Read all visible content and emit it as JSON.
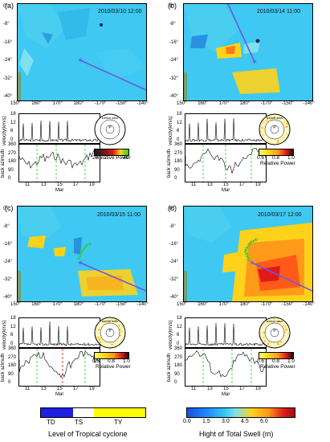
{
  "panels": [
    {
      "label": "(a)",
      "date": "2010/03/10 12:00",
      "ts_xticks": [
        "11",
        "13",
        "15",
        "17",
        "19"
      ],
      "polar_scale": [],
      "polar_values": [
        "20",
        "40"
      ]
    },
    {
      "label": "(b)",
      "date": "2010/03/14 11:00",
      "ts_xticks": [
        "11",
        "13",
        "15",
        "17",
        "19"
      ],
      "polar_scale": [
        "0.6",
        "0.8",
        "1.0"
      ],
      "polar_values": []
    },
    {
      "label": "(c)",
      "date": "2010/03/15 11:00",
      "ts_xticks": [
        "11",
        "13",
        "15",
        "17",
        "19"
      ],
      "polar_scale": [
        "0.6",
        "0.8",
        "1.0"
      ],
      "polar_values": []
    },
    {
      "label": "(d)",
      "date": "2010/03/17 12:00",
      "ts_xticks": [
        "11",
        "13",
        "15",
        "17",
        "19"
      ],
      "polar_scale": [
        "0.6",
        "0.8",
        "1.0"
      ],
      "polar_values": []
    }
  ],
  "map_y_ticks": [
    "0°",
    "-8°",
    "-16°",
    "-24°",
    "-32°",
    "-40°"
  ],
  "map_x_ticks": [
    "150°",
    "160°",
    "170°",
    "180°",
    "-170°",
    "-150°",
    "-140°"
  ],
  "ts_y_top_ticks": [
    "18",
    "12",
    "6",
    "0"
  ],
  "ts_y_bot_ticks": [
    "360",
    "270",
    "180",
    "90",
    "0"
  ],
  "ts_month": "Mar",
  "ylabel_velocity": "velocity(km/s)",
  "ylabel_azimuth": "back azimuth",
  "relative_power": "Relative Power",
  "polar_center_label": "P",
  "polar_ring_label": "surface wave",
  "legend_tc": {
    "items": [
      "TD",
      "TS",
      "TY"
    ],
    "title": "Level of Tropical cyclone"
  },
  "legend_swell": {
    "ticks": [
      "0.0",
      "1.5",
      "3.0",
      "4.5",
      "6.0"
    ],
    "title": "Hight of Total Swell (m)"
  },
  "colors": {
    "ocean": "#36c7f2",
    "swell_low": "#1e90ff",
    "swell_high": "#d7191c",
    "path_line": "#6b5bdc",
    "td": "#1f1fe0",
    "ty": "#ffff00"
  }
}
